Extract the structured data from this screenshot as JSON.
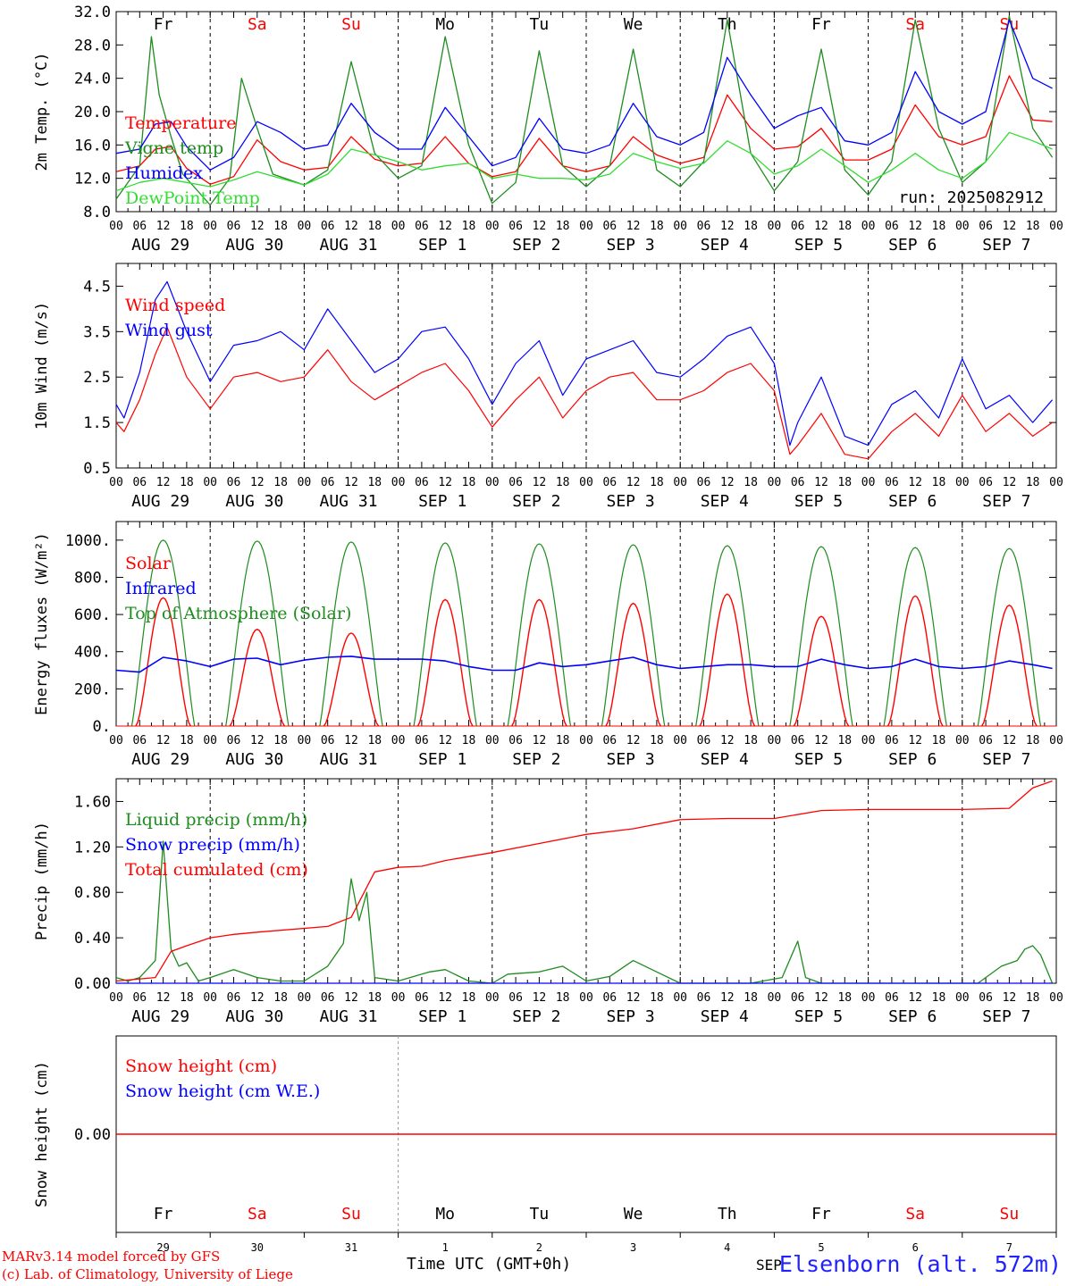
{
  "colors": {
    "red": "#ff0000",
    "blue": "#0000ff",
    "green": "#1e8c1e",
    "lightgreen": "#33dd33",
    "axis": "#000000",
    "weekday_normal": "#000000",
    "weekday_weekend": "#ff0000",
    "station": "#2222ff",
    "credit": "#ff0000"
  },
  "weekdays": [
    {
      "label": "Fr",
      "weekend": false
    },
    {
      "label": "Sa",
      "weekend": true
    },
    {
      "label": "Su",
      "weekend": true
    },
    {
      "label": "Mo",
      "weekend": false
    },
    {
      "label": "Tu",
      "weekend": false
    },
    {
      "label": "We",
      "weekend": false
    },
    {
      "label": "Th",
      "weekend": false
    },
    {
      "label": "Fr",
      "weekend": false
    },
    {
      "label": "Sa",
      "weekend": true
    },
    {
      "label": "Su",
      "weekend": true
    }
  ],
  "hour_ticks": [
    "00",
    "06",
    "12",
    "18"
  ],
  "date_labels": [
    "AUG 29",
    "AUG 30",
    "AUG 31",
    "SEP  1",
    "SEP  2",
    "SEP  3",
    "SEP  4",
    "SEP  5",
    "SEP  6",
    "SEP  7"
  ],
  "day_numbers": [
    "29",
    "30",
    "31",
    "1",
    "2",
    "3",
    "4",
    "5",
    "6",
    "7"
  ],
  "footer": {
    "credit_line1": "MARv3.14 model forced by GFS",
    "credit_line2": "(c) Lab. of Climatology, University of Liege",
    "time_axis_label": "Time UTC (GMT+0h)",
    "month_fragment": "SEP",
    "station": "Elsenborn (alt. 572m)"
  },
  "chart_data": [
    {
      "type": "line",
      "ylabel": "2m Temp. (°C)",
      "ylim": [
        8,
        32
      ],
      "yticks": [
        "8.0",
        "12.0",
        "16.0",
        "20.0",
        "24.0",
        "28.0",
        "32.0"
      ],
      "run_label": "run: 2025082912",
      "x_unit": "hours since AUG 29 00 UTC",
      "series": [
        {
          "name": "Temperature",
          "color": "red",
          "x": [
            0,
            6,
            10,
            14,
            18,
            24,
            30,
            36,
            42,
            48,
            54,
            60,
            66,
            72,
            78,
            84,
            90,
            96,
            102,
            108,
            114,
            120,
            126,
            132,
            138,
            144,
            150,
            156,
            162,
            168,
            174,
            180,
            186,
            192,
            198,
            204,
            210,
            216,
            222,
            228,
            234,
            239
          ],
          "values": [
            12.8,
            13.5,
            15.5,
            15.8,
            13.2,
            11.3,
            12.2,
            16.6,
            14.0,
            13.0,
            13.3,
            17.0,
            14.3,
            13.5,
            13.8,
            17.0,
            13.8,
            12.2,
            12.8,
            16.8,
            13.5,
            12.8,
            13.5,
            17.0,
            14.8,
            13.8,
            14.5,
            22.0,
            18.0,
            15.5,
            15.8,
            18.0,
            14.2,
            14.2,
            15.5,
            20.8,
            17.0,
            16.0,
            17.0,
            24.3,
            19.0,
            18.8
          ]
        },
        {
          "name": "Vigne temp",
          "color": "green",
          "x": [
            0,
            6,
            9,
            11,
            14,
            17,
            24,
            29,
            32,
            36,
            40,
            48,
            54,
            60,
            66,
            72,
            78,
            84,
            90,
            96,
            102,
            108,
            114,
            120,
            126,
            132,
            138,
            144,
            150,
            156,
            162,
            168,
            174,
            180,
            186,
            192,
            198,
            204,
            210,
            216,
            222,
            228,
            234,
            239
          ],
          "values": [
            9.5,
            13.5,
            29.0,
            22.0,
            17.0,
            12.5,
            8.8,
            12.0,
            24.0,
            18.0,
            12.5,
            11.2,
            13.0,
            26.0,
            15.0,
            12.0,
            13.5,
            29.0,
            16.0,
            9.0,
            11.5,
            27.3,
            13.5,
            11.0,
            13.5,
            27.5,
            13.0,
            11.0,
            14.0,
            31.0,
            15.0,
            10.5,
            14.0,
            27.5,
            13.0,
            10.0,
            14.0,
            31.0,
            18.0,
            11.5,
            14.0,
            31.5,
            18.0,
            14.5
          ]
        },
        {
          "name": "Humidex",
          "color": "blue",
          "x": [
            0,
            6,
            10,
            14,
            18,
            24,
            30,
            36,
            42,
            48,
            54,
            60,
            66,
            72,
            78,
            84,
            90,
            96,
            102,
            108,
            114,
            120,
            126,
            132,
            138,
            144,
            150,
            156,
            162,
            168,
            174,
            180,
            186,
            192,
            198,
            204,
            210,
            216,
            222,
            228,
            234,
            239
          ],
          "values": [
            15.0,
            15.5,
            18.5,
            18.8,
            15.8,
            13.0,
            14.5,
            18.8,
            17.5,
            15.5,
            16.0,
            21.0,
            17.5,
            15.5,
            15.5,
            20.5,
            17.0,
            13.5,
            14.5,
            19.2,
            15.5,
            15.0,
            16.0,
            21.0,
            17.0,
            16.0,
            17.5,
            26.5,
            22.0,
            18.0,
            19.5,
            20.5,
            16.5,
            16.0,
            17.5,
            24.8,
            20.0,
            18.5,
            20.0,
            31.0,
            24.0,
            22.8
          ]
        },
        {
          "name": "DewPoint Temp",
          "color": "lightgreen",
          "x": [
            0,
            6,
            12,
            18,
            24,
            30,
            36,
            42,
            48,
            54,
            60,
            66,
            72,
            78,
            84,
            90,
            96,
            102,
            108,
            114,
            120,
            126,
            132,
            138,
            144,
            150,
            156,
            162,
            168,
            174,
            180,
            186,
            192,
            198,
            204,
            210,
            216,
            222,
            228,
            234,
            239
          ],
          "values": [
            10.5,
            11.5,
            12.0,
            11.5,
            11.0,
            11.8,
            12.8,
            12.0,
            11.2,
            12.5,
            15.5,
            14.8,
            14.0,
            13.0,
            13.5,
            13.8,
            12.0,
            12.5,
            12.0,
            12.0,
            11.8,
            12.5,
            15.0,
            14.0,
            13.2,
            13.8,
            16.5,
            15.0,
            12.5,
            13.5,
            15.5,
            13.5,
            11.5,
            13.0,
            15.0,
            13.0,
            12.0,
            14.0,
            17.5,
            16.5,
            15.5
          ]
        }
      ]
    },
    {
      "type": "line",
      "ylabel": "10m Wind (m/s)",
      "ylim": [
        0.5,
        5.0
      ],
      "yticks": [
        "0.5",
        "1.5",
        "2.5",
        "3.5",
        "4.5"
      ],
      "x_unit": "hours since AUG 29 00 UTC",
      "series": [
        {
          "name": "Wind speed",
          "color": "red",
          "x": [
            0,
            2,
            6,
            10,
            13,
            18,
            24,
            30,
            36,
            42,
            48,
            54,
            60,
            66,
            72,
            78,
            84,
            90,
            96,
            102,
            108,
            114,
            120,
            126,
            132,
            138,
            144,
            150,
            156,
            162,
            168,
            172,
            174,
            180,
            186,
            192,
            198,
            204,
            210,
            216,
            222,
            228,
            234,
            239
          ],
          "values": [
            1.5,
            1.3,
            2.0,
            3.0,
            3.6,
            2.5,
            1.8,
            2.5,
            2.6,
            2.4,
            2.5,
            3.1,
            2.4,
            2.0,
            2.3,
            2.6,
            2.8,
            2.2,
            1.4,
            2.0,
            2.5,
            1.6,
            2.2,
            2.5,
            2.6,
            2.0,
            2.0,
            2.2,
            2.6,
            2.8,
            2.2,
            0.8,
            1.0,
            1.7,
            0.8,
            0.7,
            1.3,
            1.7,
            1.2,
            2.1,
            1.3,
            1.7,
            1.2,
            1.5
          ]
        },
        {
          "name": "Wind gust",
          "color": "blue",
          "x": [
            0,
            2,
            6,
            10,
            13,
            18,
            24,
            30,
            36,
            42,
            48,
            54,
            60,
            66,
            72,
            78,
            84,
            90,
            96,
            102,
            108,
            114,
            120,
            126,
            132,
            138,
            144,
            150,
            156,
            162,
            168,
            172,
            174,
            180,
            186,
            192,
            198,
            204,
            210,
            216,
            222,
            228,
            234,
            239
          ],
          "values": [
            1.9,
            1.6,
            2.6,
            4.2,
            4.6,
            3.5,
            2.4,
            3.2,
            3.3,
            3.5,
            3.1,
            4.0,
            3.3,
            2.6,
            2.9,
            3.5,
            3.6,
            2.9,
            1.9,
            2.8,
            3.3,
            2.1,
            2.9,
            3.1,
            3.3,
            2.6,
            2.5,
            2.9,
            3.4,
            3.6,
            2.8,
            1.0,
            1.5,
            2.5,
            1.2,
            1.0,
            1.9,
            2.2,
            1.6,
            2.9,
            1.8,
            2.1,
            1.5,
            2.0
          ]
        }
      ]
    },
    {
      "type": "line",
      "ylabel": "Energy fluxes (W/m²)",
      "ylim": [
        0,
        1100
      ],
      "yticks": [
        "0.",
        "200.",
        "400.",
        "600.",
        "800.",
        "1000."
      ],
      "x_unit": "hours since AUG 29 00 UTC",
      "solar_peaks": [
        690,
        520,
        500,
        680,
        680,
        660,
        710,
        590,
        700,
        650
      ],
      "toa_peaks": [
        1000,
        995,
        990,
        985,
        980,
        975,
        970,
        965,
        960,
        955
      ],
      "series": [
        {
          "name": "Solar",
          "color": "red"
        },
        {
          "name": "Infrared",
          "color": "blue",
          "x": [
            0,
            6,
            12,
            18,
            24,
            30,
            36,
            42,
            48,
            54,
            60,
            66,
            72,
            78,
            84,
            90,
            96,
            102,
            108,
            114,
            120,
            126,
            132,
            138,
            144,
            150,
            156,
            162,
            168,
            174,
            180,
            186,
            192,
            198,
            204,
            210,
            216,
            222,
            228,
            234,
            239
          ],
          "values": [
            300,
            290,
            370,
            350,
            320,
            360,
            365,
            330,
            355,
            370,
            375,
            360,
            360,
            360,
            350,
            320,
            300,
            300,
            340,
            320,
            330,
            350,
            370,
            330,
            310,
            320,
            330,
            330,
            320,
            320,
            360,
            330,
            310,
            320,
            360,
            320,
            310,
            320,
            350,
            330,
            310
          ]
        },
        {
          "name": "Top of Atmosphere (Solar)",
          "color": "green"
        }
      ]
    },
    {
      "type": "line",
      "ylabel": "Precip (mm/h)",
      "ylim": [
        0,
        1.8
      ],
      "yticks": [
        "0.00",
        "0.40",
        "0.80",
        "1.20",
        "1.60"
      ],
      "x_unit": "hours since AUG 29 00 UTC",
      "series": [
        {
          "name": "Liquid precip (mm/h)",
          "color": "green",
          "x": [
            0,
            3,
            6,
            10,
            12,
            14,
            16,
            18,
            21,
            24,
            30,
            36,
            42,
            48,
            54,
            58,
            60,
            62,
            64,
            66,
            72,
            80,
            84,
            90,
            96,
            100,
            108,
            114,
            120,
            126,
            132,
            138,
            144,
            150,
            156,
            162,
            170,
            174,
            176,
            180,
            184,
            192,
            200,
            210,
            220,
            226,
            230,
            232,
            234,
            236,
            239
          ],
          "values": [
            0.05,
            0.02,
            0.05,
            0.2,
            1.25,
            0.3,
            0.15,
            0.18,
            0.02,
            0.05,
            0.12,
            0.05,
            0.02,
            0.02,
            0.15,
            0.35,
            0.92,
            0.55,
            0.8,
            0.05,
            0.02,
            0.1,
            0.12,
            0.02,
            0.0,
            0.08,
            0.1,
            0.15,
            0.02,
            0.06,
            0.2,
            0.1,
            0.0,
            0.0,
            0.0,
            0.0,
            0.05,
            0.37,
            0.05,
            0.0,
            0.0,
            0.0,
            0.0,
            0.0,
            0.0,
            0.15,
            0.2,
            0.3,
            0.33,
            0.25,
            0.0
          ]
        },
        {
          "name": "Snow precip (mm/h)",
          "color": "blue",
          "x": [
            0,
            239
          ],
          "values": [
            0.0,
            0.0
          ]
        },
        {
          "name": "Total cumulated (cm)",
          "color": "red",
          "x": [
            0,
            10,
            14,
            18,
            24,
            30,
            36,
            54,
            60,
            66,
            72,
            78,
            84,
            96,
            108,
            120,
            132,
            144,
            156,
            168,
            180,
            192,
            216,
            228,
            234,
            239
          ],
          "values": [
            0.02,
            0.05,
            0.28,
            0.33,
            0.4,
            0.43,
            0.45,
            0.5,
            0.58,
            0.98,
            1.02,
            1.03,
            1.08,
            1.15,
            1.23,
            1.31,
            1.36,
            1.44,
            1.45,
            1.45,
            1.52,
            1.53,
            1.53,
            1.54,
            1.72,
            1.78
          ]
        }
      ]
    },
    {
      "type": "line",
      "ylabel": "Snow height (cm)",
      "yticks": [
        "0.00"
      ],
      "x_unit": "hours since AUG 29 00 UTC",
      "series": [
        {
          "name": "Snow height (cm)",
          "color": "red",
          "x": [
            0,
            239
          ],
          "values": [
            0,
            0
          ]
        },
        {
          "name": "Snow height (cm W.E.)",
          "color": "blue",
          "x": [
            0,
            239
          ],
          "values": [
            0,
            0
          ]
        }
      ]
    }
  ]
}
